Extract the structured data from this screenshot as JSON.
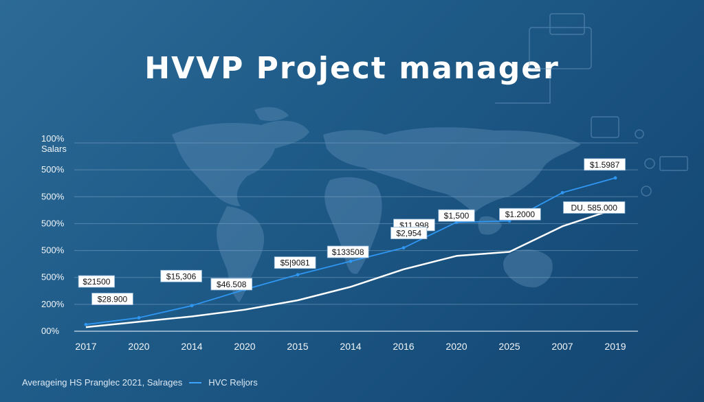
{
  "title": "HVVP Project manager",
  "colors": {
    "white_line": "#ffffff",
    "blue_line": "#2f97f2",
    "label_bg": "#ffffff",
    "label_text": "#111111",
    "axis_text": "#f2f6fa"
  },
  "legend": {
    "left_text": "Averageing HS Pranglec 2021, Salrages",
    "right_text": "HVC Reljors"
  },
  "chart_data": {
    "type": "line",
    "title": "HVVP Project manager",
    "ylabel_lines": [
      "100%",
      "Salars"
    ],
    "y_tick_labels": [
      "500%",
      "500%",
      "500%",
      "500%",
      "500%",
      "200%",
      "00%"
    ],
    "x_tick_labels": [
      "2017",
      "2020",
      "2014",
      "2020",
      "2015",
      "2014",
      "2016",
      "2020",
      "2025",
      "2007",
      "2019"
    ],
    "ylim": [
      0,
      7
    ],
    "grid": true,
    "series": [
      {
        "color": "#ffffff",
        "x": [
          0,
          1,
          2,
          3,
          4,
          5,
          6,
          7,
          8,
          9,
          10
        ],
        "values": [
          0.15,
          0.35,
          0.55,
          0.8,
          1.15,
          1.65,
          2.3,
          2.8,
          2.95,
          3.9,
          4.55
        ]
      },
      {
        "color": "#2f97f2",
        "x": [
          0,
          1,
          2,
          3,
          4,
          5,
          6,
          7,
          8,
          9,
          10
        ],
        "values": [
          0.25,
          0.5,
          0.95,
          1.55,
          2.1,
          2.6,
          3.1,
          4.05,
          4.1,
          5.15,
          5.7
        ]
      }
    ],
    "annotations": [
      {
        "text": "$21500",
        "x": 0.2,
        "y": 1.85
      },
      {
        "text": "$28.900",
        "x": 0.5,
        "y": 1.2
      },
      {
        "text": "$15,306",
        "x": 1.8,
        "y": 2.05
      },
      {
        "text": "$46.508",
        "x": 2.75,
        "y": 1.75
      },
      {
        "text": "$5|9081",
        "x": 3.95,
        "y": 2.55
      },
      {
        "text": "$133508",
        "x": 4.95,
        "y": 2.95
      },
      {
        "text": "$11,998",
        "x": 6.2,
        "y": 3.95
      },
      {
        "text": "$2,954",
        "x": 6.1,
        "y": 3.65
      },
      {
        "text": "$1,500",
        "x": 7.0,
        "y": 4.3
      },
      {
        "text": "$1.2000",
        "x": 8.2,
        "y": 4.35
      },
      {
        "text": "DU. 585.000",
        "x": 9.6,
        "y": 4.6
      },
      {
        "text": "$1.5987",
        "x": 9.8,
        "y": 6.2
      }
    ]
  }
}
